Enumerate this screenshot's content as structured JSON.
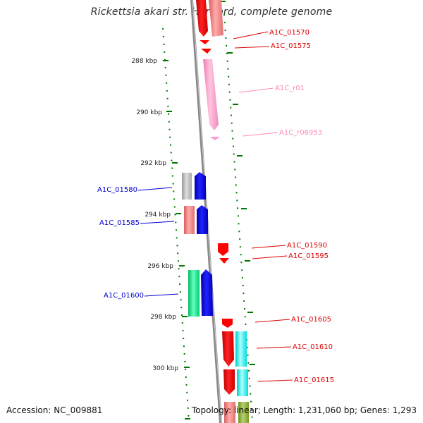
{
  "title": "Rickettsia akari str. Hartford, complete genome",
  "footer": {
    "accession": "Accession: NC_009881",
    "summary": "Topology: linear; Length: 1,231,060 bp; Genes: 1,293"
  },
  "colors": {
    "red": "#ff0000",
    "salmon": "#f08080",
    "pink": "#ff99cc",
    "blue": "#0000ee",
    "gray": "#b0b0b0",
    "green": "#00ee88",
    "cyan": "#00eeee",
    "olive": "#88aa33",
    "tick_green": "#007700",
    "axis_gray": "#888888"
  },
  "ruler": [
    {
      "label": "288 kbp",
      "bp": 288000
    },
    {
      "label": "290 kbp",
      "bp": 290000
    },
    {
      "label": "292 kbp",
      "bp": 292000
    },
    {
      "label": "294 kbp",
      "bp": 294000
    },
    {
      "label": "296 kbp",
      "bp": 296000
    },
    {
      "label": "298 kbp",
      "bp": 298000
    },
    {
      "label": "300 kbp",
      "bp": 300000
    }
  ],
  "gene_labels": [
    {
      "name": "A1C_01570",
      "color": "#dd0000"
    },
    {
      "name": "A1C_01575",
      "color": "#dd0000"
    },
    {
      "name": "A1C_r01",
      "color": "#ff88bb"
    },
    {
      "name": "A1C_r06953",
      "color": "#ff88bb"
    },
    {
      "name": "A1C_01580",
      "color": "#0000cc"
    },
    {
      "name": "A1C_01585",
      "color": "#0000cc"
    },
    {
      "name": "A1C_01590",
      "color": "#dd0000"
    },
    {
      "name": "A1C_01595",
      "color": "#dd0000"
    },
    {
      "name": "A1C_01600",
      "color": "#0000cc"
    },
    {
      "name": "A1C_01605",
      "color": "#dd0000"
    },
    {
      "name": "A1C_01610",
      "color": "#dd0000"
    },
    {
      "name": "A1C_01615",
      "color": "#dd0000"
    }
  ]
}
